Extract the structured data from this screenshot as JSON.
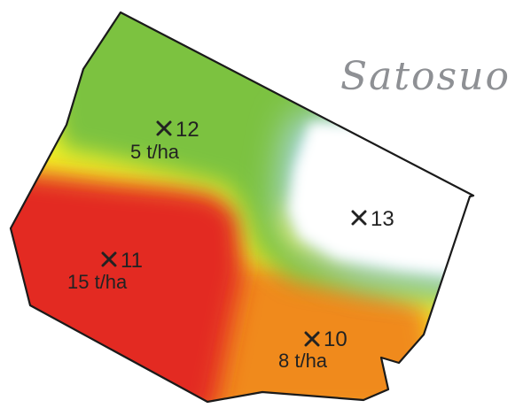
{
  "title": "Satosuo",
  "colors": {
    "high_yield": "#e32a20",
    "mid_yield": "#f08a1e",
    "threshold": "#f5f225",
    "low_yield": "#7cc240",
    "lowest": "#ffffff",
    "transition_blue": "#a9d7e6",
    "outline": "#1a1a1a"
  },
  "sample_points": [
    {
      "id": "12",
      "icon": "cross-marker",
      "yield_text": "5 t/ha"
    },
    {
      "id": "11",
      "icon": "cross-marker",
      "yield_text": "15 t/ha"
    },
    {
      "id": "13",
      "icon": "cross-marker",
      "yield_text": ""
    },
    {
      "id": "10",
      "icon": "cross-marker",
      "yield_text": "8 t/ha"
    }
  ]
}
